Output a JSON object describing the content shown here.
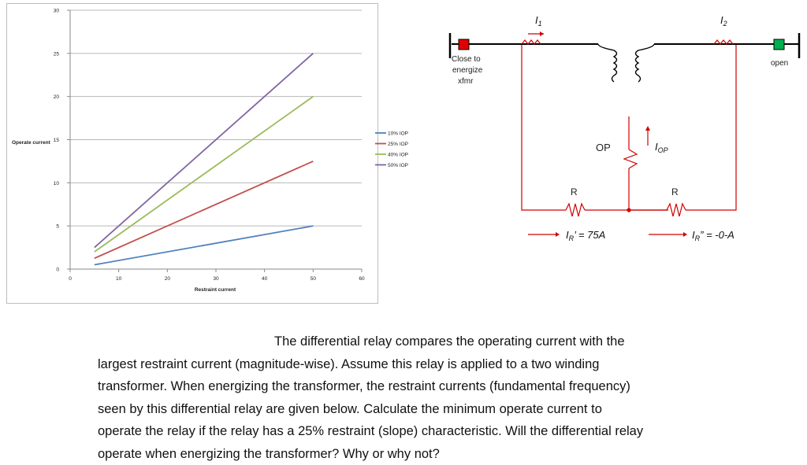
{
  "chart_data": {
    "type": "line",
    "xlabel": "Restraint current",
    "ylabel": "Operate current",
    "xlim": [
      0,
      60
    ],
    "ylim": [
      0,
      30
    ],
    "x_ticks": [
      "0",
      "10",
      "20",
      "30",
      "40",
      "50",
      "60"
    ],
    "y_ticks": [
      "0",
      "5",
      "10",
      "15",
      "20",
      "25",
      "30"
    ],
    "grid": true,
    "legend_position": "right",
    "series": [
      {
        "name": "10% IOP",
        "color": "#4f81bd",
        "x": [
          5,
          50
        ],
        "y": [
          0.5,
          5
        ]
      },
      {
        "name": "25% IOP",
        "color": "#c0504d",
        "x": [
          5,
          50
        ],
        "y": [
          1.25,
          12.5
        ]
      },
      {
        "name": "40% IOP",
        "color": "#9bbb59",
        "x": [
          5,
          50
        ],
        "y": [
          2,
          20
        ]
      },
      {
        "name": "50% IOP",
        "color": "#8064a2",
        "x": [
          5,
          50
        ],
        "y": [
          2.5,
          25
        ]
      }
    ]
  },
  "circuit": {
    "i1_label": "I",
    "i1_sub": "1",
    "i2_label": "I",
    "i2_sub": "2",
    "close_label_lines": [
      "Close to",
      "energize",
      "xfmr"
    ],
    "open_label": "open",
    "op_label": "OP",
    "iop_label": "I",
    "iop_sub": "OP",
    "r_left_label": "R",
    "r_right_label": "R",
    "ir1_main": "I",
    "ir1_sub": "R",
    "ir1_rest": "’ = 75A",
    "ir2_main": "I",
    "ir2_sub": "R",
    "ir2_rest": "” = -0-A",
    "close_breaker_color": "#e00000",
    "open_breaker_color": "#00b050",
    "wire_color": "#d00000"
  },
  "paragraph": {
    "lines": [
      "The differential relay compares the operating current with the",
      "largest restraint current (magnitude-wise).  Assume this relay is applied to a two winding",
      "transformer. When energizing the transformer, the restraint currents (fundamental frequency)",
      "seen by this differential relay are given below.  Calculate the minimum operate current to",
      "operate the relay if the relay has a 25% restraint (slope) characteristic. Will the differential relay",
      "operate when energizing the transformer? Why or why not?"
    ]
  }
}
